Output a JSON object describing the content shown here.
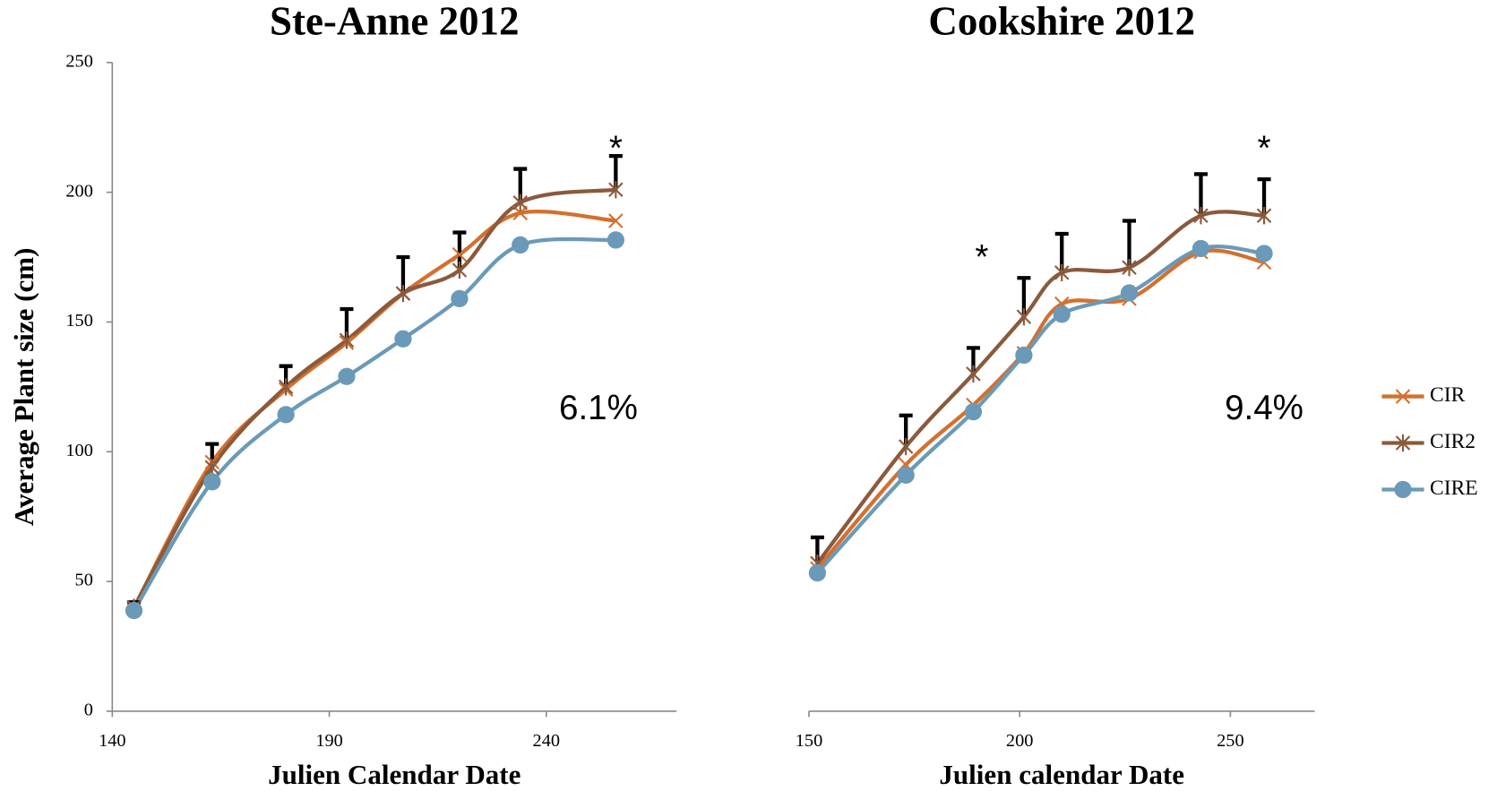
{
  "chart_data": [
    {
      "type": "line",
      "title": "Ste-Anne 2012",
      "xlabel": "Julien Calendar Date",
      "ylabel": "Average Plant size (cm)",
      "x": [
        145,
        163,
        180,
        194,
        207,
        220,
        234,
        256
      ],
      "series": [
        {
          "color": "#d4702e",
          "marker": "x",
          "values": [
            40,
            96,
            124,
            142,
            161,
            176,
            192,
            189
          ]
        },
        {
          "color": "#8b5a3c",
          "marker": "asterisk",
          "values": [
            40,
            94,
            125,
            143,
            161,
            170,
            196,
            201
          ],
          "error": [
            2,
            9,
            8,
            12,
            14,
            14.5,
            13,
            13
          ]
        },
        {
          "color": "#6a9ab8",
          "marker": "circle",
          "values": [
            38.8,
            88.4,
            114.3,
            129,
            143.5,
            159,
            179.7,
            181.6
          ]
        }
      ],
      "xlim": [
        140,
        270
      ],
      "xticks": [
        140,
        190,
        240
      ],
      "ylim": [
        0,
        250
      ],
      "yticks": [
        0,
        50,
        100,
        150,
        200,
        250
      ],
      "annotations": [
        {
          "text": "*",
          "x": 256,
          "y": 219
        },
        {
          "text": "6.1%",
          "x": 252,
          "y": 116
        }
      ]
    },
    {
      "type": "line",
      "title": "Cookshire 2012",
      "xlabel": "Julien calendar Date",
      "x": [
        152,
        173,
        189,
        201,
        210,
        226,
        243,
        258
      ],
      "series": [
        {
          "name": "CIR",
          "color": "#d4702e",
          "marker": "x",
          "values": [
            55,
            95,
            118,
            138,
            157,
            159,
            177,
            173
          ]
        },
        {
          "name": "CIR2",
          "color": "#8b5a3c",
          "marker": "asterisk",
          "values": [
            57,
            102,
            130,
            152,
            169,
            171,
            191,
            191
          ],
          "error": [
            10,
            12,
            10,
            15,
            15,
            18,
            16,
            14
          ]
        },
        {
          "name": "CIRE",
          "color": "#6a9ab8",
          "marker": "circle",
          "values": [
            53.3,
            91,
            115.4,
            137.2,
            153,
            161.2,
            178.3,
            176.4
          ]
        }
      ],
      "xlim": [
        150,
        270
      ],
      "xticks": [
        150,
        200,
        250
      ],
      "ylim": [
        0,
        250
      ],
      "legend": "right",
      "annotations": [
        {
          "text": "*",
          "x": 191,
          "y": 177
        },
        {
          "text": "*",
          "x": 258,
          "y": 219
        },
        {
          "text": "9.4%",
          "x": 258,
          "y": 116
        }
      ]
    }
  ]
}
